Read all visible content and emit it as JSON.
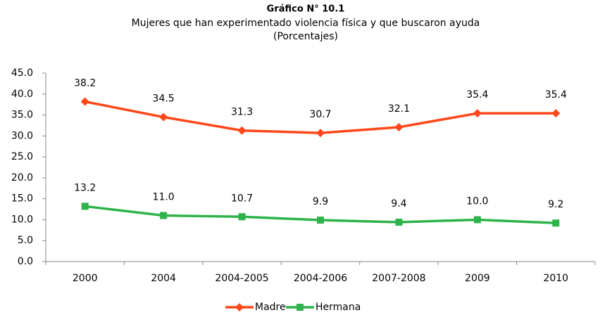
{
  "chart_data": {
    "type": "line",
    "title": "Gráfico N° 10.1",
    "subtitle": "Mujeres que han experimentado violencia física y que buscaron ayuda",
    "subtitle2": "(Porcentajes)",
    "categories": [
      "2000",
      "2004",
      "2004-2005",
      "2004-2006",
      "2007-2008",
      "2009",
      "2010"
    ],
    "series": [
      {
        "name": "Madre",
        "color": "#ff4719",
        "marker": "diamond",
        "values": [
          38.2,
          34.5,
          31.3,
          30.7,
          32.1,
          35.4,
          35.4
        ],
        "value_labels": [
          "38.2",
          "34.5",
          "31.3",
          "30.7",
          "32.1",
          "35.4",
          "35.4"
        ]
      },
      {
        "name": "Hermana",
        "color": "#2eb34a",
        "marker": "square",
        "values": [
          13.2,
          11.0,
          10.7,
          9.9,
          9.4,
          10.0,
          9.2
        ],
        "value_labels": [
          "13.2",
          "11.0",
          "10.7",
          "9.9",
          "9.4",
          "10.0",
          "9.2"
        ]
      }
    ],
    "ylim": [
      0,
      45
    ],
    "yticks": [
      {
        "value": 0,
        "label": "0.0"
      },
      {
        "value": 5,
        "label": "5.0"
      },
      {
        "value": 10,
        "label": "10.0"
      },
      {
        "value": 15,
        "label": "15.0"
      },
      {
        "value": 20,
        "label": "20.0"
      },
      {
        "value": 25,
        "label": "25.0"
      },
      {
        "value": 30,
        "label": "30.0"
      },
      {
        "value": 35,
        "label": "35.0"
      },
      {
        "value": 40,
        "label": "40.0"
      },
      {
        "value": 45,
        "label": "45.0"
      }
    ],
    "grid": false,
    "legend": "bottom"
  }
}
